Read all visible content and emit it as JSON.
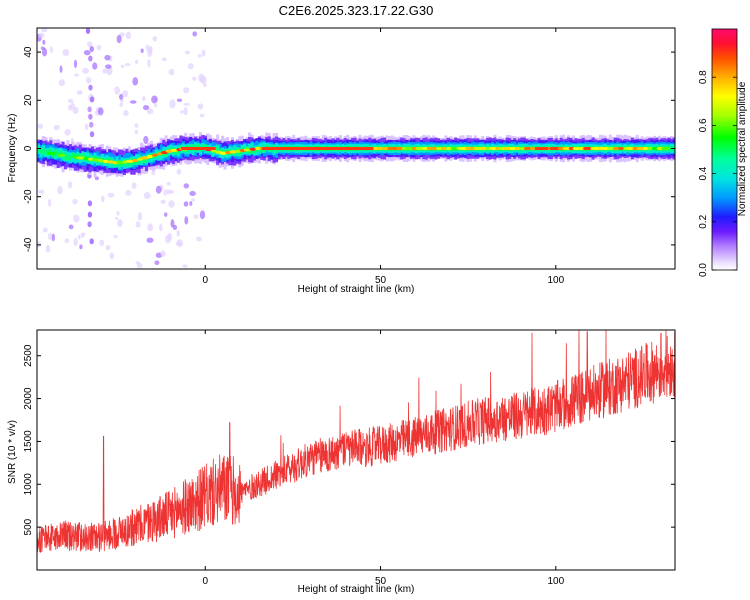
{
  "title": "C2E6.2025.323.17.22.G30",
  "chart_data": [
    {
      "type": "heatmap",
      "name": "spectrogram",
      "xlabel": "Height of straight line (km)",
      "ylabel": "Frequency (Hz)",
      "xlim": [
        -48,
        134
      ],
      "ylim": [
        -50,
        50
      ],
      "xticks": [
        0,
        50,
        100
      ],
      "yticks": [
        -40,
        -20,
        0,
        20,
        40
      ],
      "colorbar": {
        "label": "Normalized spectral amplitude",
        "range": [
          0,
          1
        ],
        "ticks": [
          "0.0",
          "0.2",
          "0.4",
          "0.6",
          "0.8"
        ],
        "tick_values": [
          0.0,
          0.2,
          0.4,
          0.6,
          0.8
        ]
      },
      "ridge": {
        "description_points_x": [
          -48,
          -40,
          -30,
          -25,
          -20,
          -15,
          -10,
          -5,
          0,
          5,
          10,
          15,
          20,
          40,
          60,
          80,
          100,
          120,
          134
        ],
        "frequency_hz": [
          -1,
          -3,
          -5,
          -6,
          -5,
          -3,
          -1,
          0,
          0,
          -2,
          -1,
          0,
          0,
          0,
          0,
          0,
          0,
          0,
          0
        ],
        "peak_amplitude": [
          0.5,
          0.6,
          0.7,
          0.75,
          0.8,
          0.85,
          0.9,
          0.95,
          0.95,
          0.8,
          0.85,
          0.9,
          0.95,
          0.95,
          0.8,
          0.75,
          0.9,
          0.85,
          0.6
        ]
      }
    },
    {
      "type": "line",
      "name": "snr",
      "xlabel": "Height of straight line (km)",
      "ylabel": "SNR (10 * v/v)",
      "xlim": [
        -48,
        134
      ],
      "ylim": [
        0,
        2800
      ],
      "xticks": [
        0,
        50,
        100
      ],
      "yticks": [
        500,
        1000,
        1500,
        2000,
        2500
      ],
      "color": "#ee3333",
      "series": [
        {
          "name": "SNR",
          "trend_x": [
            -48,
            -40,
            -30,
            -20,
            -10,
            0,
            5,
            10,
            20,
            30,
            40,
            50,
            60,
            70,
            80,
            90,
            100,
            110,
            120,
            134
          ],
          "trend_y": [
            350,
            400,
            380,
            500,
            650,
            850,
            950,
            900,
            1100,
            1300,
            1400,
            1450,
            1550,
            1650,
            1750,
            1800,
            1900,
            2050,
            2200,
            2400
          ],
          "spikes": [
            {
              "x": -29,
              "y": 1560
            },
            {
              "x": 7,
              "y": 1720
            },
            {
              "x": 109,
              "y": 2780
            },
            {
              "x": 130,
              "y": 2760
            }
          ]
        }
      ]
    }
  ]
}
